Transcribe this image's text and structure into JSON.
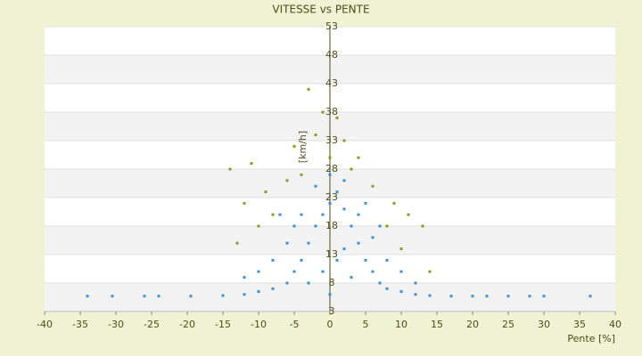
{
  "chart_data": {
    "type": "scatter",
    "title": "VITESSE vs PENTE",
    "x_label": "Pente [%]",
    "y_label": "[km/h]",
    "xlim": [
      -40,
      40
    ],
    "xticks": [
      -40,
      -35,
      -30,
      -25,
      -20,
      -15,
      -10,
      -5,
      0,
      5,
      10,
      15,
      20,
      25,
      30,
      35,
      40
    ],
    "ylim": [
      3,
      53
    ],
    "yticks": [
      3,
      8,
      13,
      18,
      23,
      28,
      33,
      38,
      43,
      48,
      53
    ],
    "grid": "bands",
    "series": [
      {
        "color": "#3a8fd6",
        "x": [
          -34,
          -30.5,
          -26,
          -24,
          -19.5,
          -15,
          -12,
          -10,
          -8,
          -6,
          -5,
          -4,
          -3,
          -2,
          -1,
          0,
          1,
          2,
          3,
          4,
          5,
          6,
          7,
          8,
          10,
          12,
          14,
          17,
          20,
          22,
          25,
          28,
          30,
          36.5,
          -8,
          -6,
          -4,
          -2,
          0,
          2,
          4,
          6,
          8,
          10,
          -10,
          -12,
          12,
          -1,
          1,
          3,
          -3,
          0,
          2,
          -5,
          5,
          -7,
          7
        ],
        "values": [
          5.7,
          5.7,
          5.7,
          5.7,
          5.7,
          5.8,
          6,
          6.5,
          7,
          8,
          10,
          12,
          15,
          18,
          20,
          22,
          24,
          21,
          18,
          15,
          12,
          10,
          8,
          7,
          6.5,
          6,
          5.8,
          5.7,
          5.7,
          5.7,
          5.7,
          5.7,
          5.7,
          5.7,
          12,
          15,
          20,
          25,
          27,
          26,
          20,
          16,
          12,
          10,
          10,
          9,
          8,
          10,
          12,
          9,
          8,
          6,
          14,
          18,
          22,
          20,
          18
        ]
      },
      {
        "color": "#8c9a1e",
        "x": [
          -3,
          -1,
          1,
          -2,
          2,
          -5,
          4,
          -14,
          -11,
          -9,
          -12,
          -8,
          9,
          11,
          13,
          14,
          -13,
          6,
          -4,
          3,
          -6,
          8,
          10,
          -10,
          0
        ],
        "values": [
          42,
          38,
          37,
          34,
          33,
          32,
          30,
          28,
          29,
          24,
          22,
          20,
          22,
          20,
          18,
          10,
          15,
          25,
          27,
          28,
          26,
          18,
          14,
          18,
          30
        ]
      }
    ]
  }
}
